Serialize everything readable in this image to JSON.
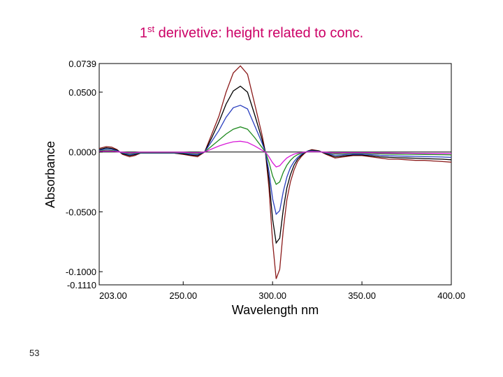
{
  "slide": {
    "title_main": "1",
    "title_sup": "st",
    "title_rest": " derivetive: height related to conc.",
    "slide_number": "53"
  },
  "colors": {
    "title": "#cc0066",
    "series": [
      "#8b1a1a",
      "#000000",
      "#2a3fbf",
      "#1f8a1f",
      "#d81ad8"
    ],
    "zero_line": "#000000"
  },
  "chart_data": {
    "type": "line",
    "title": "",
    "xlabel": "Wavelength nm",
    "ylabel": "Absorbance",
    "xlim": [
      203,
      400
    ],
    "ylim": [
      -0.111,
      0.0739
    ],
    "x_ticks": [
      203,
      250,
      300,
      350,
      400
    ],
    "x_tick_labels": [
      "203.00",
      "250.00",
      "300.00",
      "350.00",
      "400.00"
    ],
    "y_ticks": [
      0.0739,
      0.05,
      0.0,
      -0.05,
      -0.1,
      -0.111
    ],
    "y_tick_labels": [
      "0.0739",
      "0.0500",
      "0.0000",
      "-0.0500",
      "-0.1000",
      "-0.1110"
    ],
    "grid": false,
    "legend": "none",
    "x": [
      203,
      207,
      210,
      213,
      216,
      220,
      223,
      226,
      230,
      235,
      240,
      245,
      250,
      254,
      258,
      262,
      266,
      270,
      274,
      278,
      282,
      286,
      290,
      294,
      296,
      298,
      300,
      302,
      304,
      306,
      308,
      310,
      312,
      314,
      316,
      318,
      320,
      322,
      326,
      330,
      335,
      340,
      345,
      350,
      355,
      360,
      365,
      370,
      375,
      380,
      385,
      390,
      395,
      400
    ],
    "series": [
      {
        "values": [
          0.003,
          0.0045,
          0.004,
          0.002,
          -0.002,
          -0.004,
          -0.003,
          -0.001,
          -0.001,
          -0.001,
          -0.001,
          -0.001,
          -0.002,
          -0.003,
          -0.004,
          0.0,
          0.015,
          0.03,
          0.05,
          0.066,
          0.072,
          0.065,
          0.04,
          0.015,
          0.0,
          -0.03,
          -0.075,
          -0.106,
          -0.098,
          -0.065,
          -0.04,
          -0.025,
          -0.015,
          -0.008,
          -0.004,
          -0.001,
          0.001,
          0.002,
          0.001,
          -0.002,
          -0.005,
          -0.004,
          -0.003,
          -0.003,
          -0.004,
          -0.005,
          -0.006,
          -0.006,
          -0.0065,
          -0.007,
          -0.007,
          -0.0075,
          -0.008,
          -0.0085
        ]
      },
      {
        "values": [
          0.002,
          0.0035,
          0.003,
          0.0015,
          -0.0015,
          -0.003,
          -0.0022,
          -0.001,
          -0.001,
          -0.001,
          -0.001,
          -0.001,
          -0.0015,
          -0.0025,
          -0.003,
          0.0,
          0.012,
          0.025,
          0.04,
          0.051,
          0.055,
          0.05,
          0.031,
          0.011,
          0.0,
          -0.023,
          -0.056,
          -0.076,
          -0.072,
          -0.048,
          -0.03,
          -0.019,
          -0.011,
          -0.006,
          -0.003,
          -0.0005,
          0.001,
          0.0015,
          0.0008,
          -0.0015,
          -0.004,
          -0.0032,
          -0.0025,
          -0.0025,
          -0.0032,
          -0.004,
          -0.0045,
          -0.0048,
          -0.005,
          -0.0052,
          -0.0055,
          -0.0058,
          -0.006,
          -0.0065
        ]
      },
      {
        "values": [
          0.0015,
          0.0025,
          0.0022,
          0.001,
          -0.001,
          -0.0022,
          -0.0016,
          -0.0008,
          -0.0008,
          -0.0008,
          -0.0008,
          -0.0008,
          -0.001,
          -0.0018,
          -0.0022,
          0.0,
          0.009,
          0.018,
          0.029,
          0.037,
          0.039,
          0.036,
          0.022,
          0.008,
          0.0,
          -0.016,
          -0.039,
          -0.052,
          -0.049,
          -0.033,
          -0.021,
          -0.013,
          -0.008,
          -0.0045,
          -0.002,
          -0.0003,
          0.0008,
          0.001,
          0.0005,
          -0.001,
          -0.0028,
          -0.0022,
          -0.0018,
          -0.0018,
          -0.0022,
          -0.0028,
          -0.0032,
          -0.0034,
          -0.0035,
          -0.0037,
          -0.0039,
          -0.004,
          -0.0042,
          -0.0045
        ]
      },
      {
        "values": [
          0.001,
          0.0015,
          0.0013,
          0.0006,
          -0.0006,
          -0.0013,
          -0.001,
          -0.0005,
          -0.0005,
          -0.0005,
          -0.0005,
          -0.0005,
          -0.0006,
          -0.001,
          -0.0013,
          0.0,
          0.005,
          0.01,
          0.015,
          0.019,
          0.021,
          0.019,
          0.012,
          0.004,
          0.0,
          -0.0085,
          -0.02,
          -0.027,
          -0.025,
          -0.017,
          -0.011,
          -0.007,
          -0.004,
          -0.0022,
          -0.001,
          -0.0002,
          0.0004,
          0.0005,
          0.0003,
          -0.0006,
          -0.0015,
          -0.0012,
          -0.001,
          -0.001,
          -0.0012,
          -0.0015,
          -0.0017,
          -0.0018,
          -0.0019,
          -0.002,
          -0.0021,
          -0.0022,
          -0.0023,
          -0.0024
        ]
      },
      {
        "values": [
          0.0005,
          0.0008,
          0.0007,
          0.0003,
          -0.0003,
          -0.0007,
          -0.0005,
          -0.0002,
          -0.0002,
          -0.0002,
          -0.0002,
          -0.0002,
          -0.0003,
          -0.0005,
          -0.0007,
          0.0,
          0.0025,
          0.005,
          0.007,
          0.0085,
          0.009,
          0.008,
          0.005,
          0.0015,
          0.0,
          -0.004,
          -0.009,
          -0.0125,
          -0.0115,
          -0.008,
          -0.005,
          -0.0032,
          -0.0018,
          -0.001,
          -0.0005,
          -0.0001,
          0.0002,
          0.0003,
          0.0001,
          -0.0003,
          -0.0008,
          -0.0006,
          -0.0005,
          -0.0005,
          -0.0006,
          -0.0008,
          -0.0009,
          -0.001,
          -0.001,
          -0.0011,
          -0.0011,
          -0.0012,
          -0.0012,
          -0.0013
        ]
      }
    ]
  }
}
